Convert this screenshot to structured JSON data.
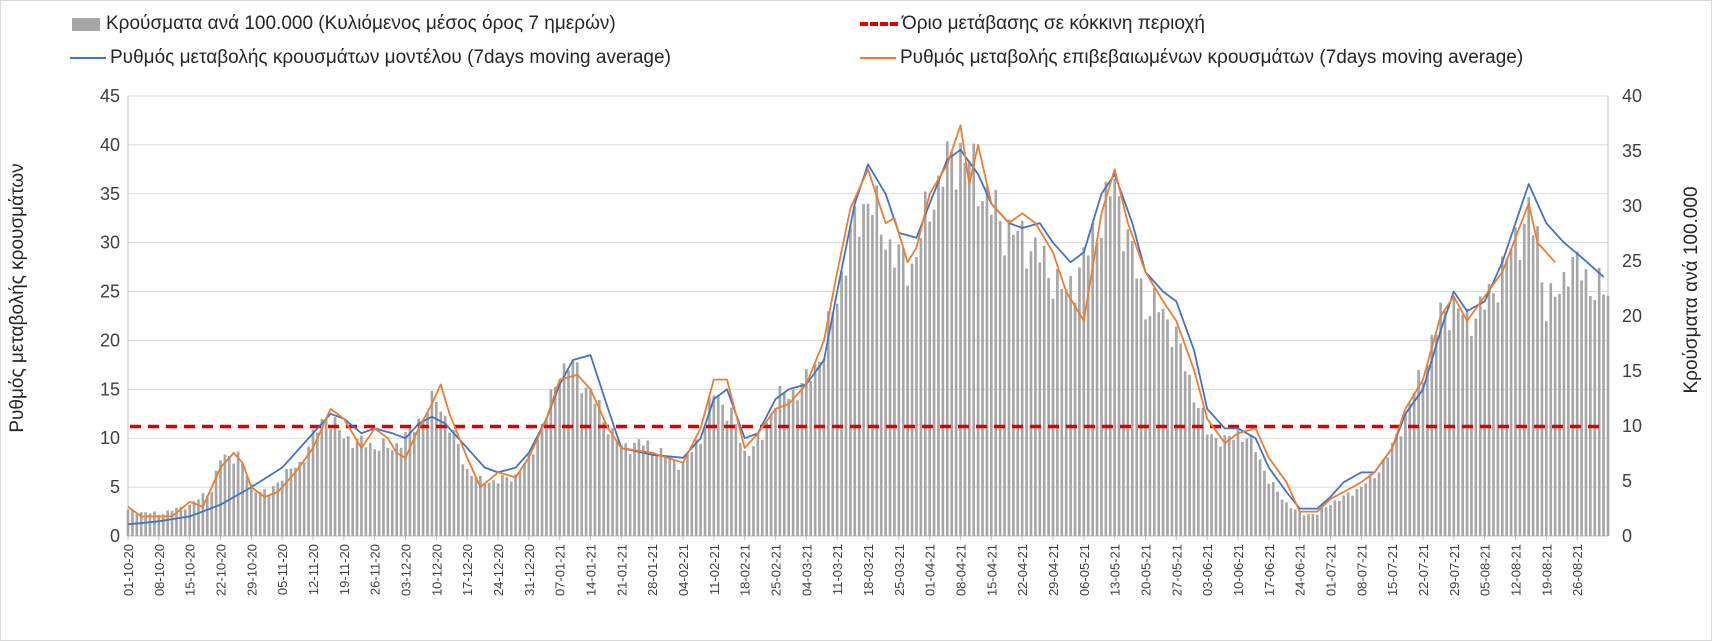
{
  "chart_data": {
    "type": "bar+line",
    "legend": {
      "bars": "Κρούσματα ανά 100.000 (Κυλιόμενος μέσος όρος 7 ημερών)",
      "threshold": "Όριο μετάβασης σε κόκκινη περιοχή",
      "model": "Ρυθμός μεταβολής κρουσμάτων μοντέλου (7days moving average)",
      "confirmed": "Ρυθμός μεταβολής επιβεβαιωμένων κρουσμάτων (7days moving average)"
    },
    "ylabel_left": "Ρυθμός μεταβολής κρουσμάτων",
    "ylabel_right": "Κρούσματα ανά 100.000",
    "y_left": {
      "min": 0,
      "max": 45,
      "ticks": [
        0,
        5,
        10,
        15,
        20,
        25,
        30,
        35,
        40,
        45
      ]
    },
    "y_right": {
      "min": 0,
      "max": 40,
      "ticks": [
        0,
        5,
        10,
        15,
        20,
        25,
        30,
        35,
        40
      ]
    },
    "x_start": "2020-10-01",
    "x_end": "2021-09-02",
    "x_ticks": [
      "01-10-20",
      "08-10-20",
      "15-10-20",
      "22-10-20",
      "29-10-20",
      "05-11-20",
      "12-11-20",
      "19-11-20",
      "26-11-20",
      "03-12-20",
      "10-12-20",
      "17-12-20",
      "24-12-20",
      "31-12-20",
      "07-01-21",
      "14-01-21",
      "21-01-21",
      "28-01-21",
      "04-02-21",
      "11-02-21",
      "18-02-21",
      "25-02-21",
      "04-03-21",
      "11-03-21",
      "18-03-21",
      "25-03-21",
      "01-04-21",
      "08-04-21",
      "15-04-21",
      "22-04-21",
      "29-04-21",
      "06-05-21",
      "13-05-21",
      "20-05-21",
      "27-05-21",
      "03-06-21",
      "10-06-21",
      "17-06-21",
      "24-06-21",
      "01-07-21",
      "08-07-21",
      "15-07-21",
      "22-07-21",
      "29-07-21",
      "05-08-21",
      "12-08-21",
      "19-08-21",
      "26-08-21"
    ],
    "threshold_left_axis": 11.2,
    "threshold_right_axis": 10,
    "grid": "horizontal",
    "legend_placement": "top",
    "colors": {
      "bars": "#a6a6a6",
      "model": "#4472c4",
      "confirmed": "#ed7d31",
      "threshold": "#e00000",
      "grid": "#d9d9d9"
    },
    "series_bars_right_axis": [
      [
        "2020-10-01",
        2.3
      ],
      [
        "2020-10-08",
        2.0
      ],
      [
        "2020-10-15",
        2.8
      ],
      [
        "2020-10-20",
        4.2
      ],
      [
        "2020-10-22",
        7.0
      ],
      [
        "2020-10-26",
        7.4
      ],
      [
        "2020-10-29",
        4.5
      ],
      [
        "2020-11-02",
        3.8
      ],
      [
        "2020-11-05",
        5.5
      ],
      [
        "2020-11-09",
        6.5
      ],
      [
        "2020-11-12",
        9.0
      ],
      [
        "2020-11-15",
        11.0
      ],
      [
        "2020-11-19",
        9.0
      ],
      [
        "2020-11-23",
        8.5
      ],
      [
        "2020-11-26",
        8.2
      ],
      [
        "2020-11-30",
        8.0
      ],
      [
        "2020-12-03",
        9.0
      ],
      [
        "2020-12-07",
        11.0
      ],
      [
        "2020-12-10",
        12.5
      ],
      [
        "2020-12-13",
        10.0
      ],
      [
        "2020-12-17",
        6.0
      ],
      [
        "2020-12-20",
        5.0
      ],
      [
        "2020-12-24",
        5.0
      ],
      [
        "2020-12-28",
        5.5
      ],
      [
        "2020-12-31",
        7.0
      ],
      [
        "2021-01-04",
        11.0
      ],
      [
        "2021-01-07",
        15.0
      ],
      [
        "2021-01-10",
        15.5
      ],
      [
        "2021-01-14",
        13.0
      ],
      [
        "2021-01-18",
        10.0
      ],
      [
        "2021-01-21",
        8.0
      ],
      [
        "2021-01-25",
        8.5
      ],
      [
        "2021-01-28",
        8.0
      ],
      [
        "2021-02-01",
        7.0
      ],
      [
        "2021-02-04",
        6.5
      ],
      [
        "2021-02-08",
        9.0
      ],
      [
        "2021-02-11",
        13.0
      ],
      [
        "2021-02-15",
        11.0
      ],
      [
        "2021-02-18",
        7.5
      ],
      [
        "2021-02-22",
        9.0
      ],
      [
        "2021-02-25",
        12.5
      ],
      [
        "2021-03-01",
        13.0
      ],
      [
        "2021-03-04",
        14.0
      ],
      [
        "2021-03-08",
        17.0
      ],
      [
        "2021-03-11",
        22.0
      ],
      [
        "2021-03-14",
        27.0
      ],
      [
        "2021-03-18",
        31.0
      ],
      [
        "2021-03-21",
        28.0
      ],
      [
        "2021-03-25",
        25.0
      ],
      [
        "2021-03-28",
        24.5
      ],
      [
        "2021-04-01",
        30.0
      ],
      [
        "2021-04-04",
        33.0
      ],
      [
        "2021-04-08",
        35.0
      ],
      [
        "2021-04-11",
        33.0
      ],
      [
        "2021-04-15",
        30.0
      ],
      [
        "2021-04-18",
        28.0
      ],
      [
        "2021-04-22",
        27.0
      ],
      [
        "2021-04-25",
        26.0
      ],
      [
        "2021-04-29",
        23.5
      ],
      [
        "2021-05-02",
        22.0
      ],
      [
        "2021-05-06",
        25.0
      ],
      [
        "2021-05-09",
        28.0
      ],
      [
        "2021-05-13",
        32.0
      ],
      [
        "2021-05-16",
        27.0
      ],
      [
        "2021-05-20",
        21.0
      ],
      [
        "2021-05-24",
        20.5
      ],
      [
        "2021-05-27",
        18.0
      ],
      [
        "2021-05-31",
        13.0
      ],
      [
        "2021-06-03",
        9.5
      ],
      [
        "2021-06-07",
        8.5
      ],
      [
        "2021-06-10",
        9.5
      ],
      [
        "2021-06-14",
        8.0
      ],
      [
        "2021-06-17",
        5.0
      ],
      [
        "2021-06-21",
        3.0
      ],
      [
        "2021-06-24",
        2.0
      ],
      [
        "2021-06-28",
        2.0
      ],
      [
        "2021-07-01",
        3.0
      ],
      [
        "2021-07-04",
        3.5
      ],
      [
        "2021-07-08",
        4.5
      ],
      [
        "2021-07-11",
        5.5
      ],
      [
        "2021-07-15",
        8.0
      ],
      [
        "2021-07-18",
        11.0
      ],
      [
        "2021-07-22",
        15.0
      ],
      [
        "2021-07-26",
        20.0
      ],
      [
        "2021-07-29",
        21.0
      ],
      [
        "2021-08-01",
        19.5
      ],
      [
        "2021-08-05",
        21.0
      ],
      [
        "2021-08-09",
        24.0
      ],
      [
        "2021-08-12",
        27.0
      ],
      [
        "2021-08-15",
        29.0
      ],
      [
        "2021-08-17",
        27.0
      ],
      [
        "2021-08-19",
        21.0
      ],
      [
        "2021-08-22",
        22.0
      ],
      [
        "2021-08-24",
        25.0
      ],
      [
        "2021-08-27",
        24.0
      ],
      [
        "2021-08-30",
        22.5
      ],
      [
        "2021-09-02",
        22.0
      ]
    ],
    "series_model_left_axis": [
      [
        "2020-10-01",
        1.2
      ],
      [
        "2020-10-08",
        1.5
      ],
      [
        "2020-10-15",
        2.0
      ],
      [
        "2020-10-22",
        3.2
      ],
      [
        "2020-10-29",
        5.0
      ],
      [
        "2020-11-05",
        7.0
      ],
      [
        "2020-11-12",
        10.5
      ],
      [
        "2020-11-16",
        12.5
      ],
      [
        "2020-11-19",
        12.0
      ],
      [
        "2020-11-23",
        10.5
      ],
      [
        "2020-11-26",
        11.0
      ],
      [
        "2020-11-30",
        10.5
      ],
      [
        "2020-12-03",
        10.0
      ],
      [
        "2020-12-06",
        11.5
      ],
      [
        "2020-12-09",
        12.2
      ],
      [
        "2020-12-12",
        11.5
      ],
      [
        "2020-12-17",
        9.0
      ],
      [
        "2020-12-21",
        7.0
      ],
      [
        "2020-12-24",
        6.5
      ],
      [
        "2020-12-28",
        7.0
      ],
      [
        "2020-12-31",
        8.5
      ],
      [
        "2021-01-04",
        12.0
      ],
      [
        "2021-01-07",
        15.5
      ],
      [
        "2021-01-10",
        18.0
      ],
      [
        "2021-01-14",
        18.5
      ],
      [
        "2021-01-18",
        13.0
      ],
      [
        "2021-01-21",
        9.0
      ],
      [
        "2021-01-28",
        8.3
      ],
      [
        "2021-02-04",
        8.0
      ],
      [
        "2021-02-08",
        10.0
      ],
      [
        "2021-02-11",
        14.0
      ],
      [
        "2021-02-14",
        15.0
      ],
      [
        "2021-02-18",
        10.0
      ],
      [
        "2021-02-21",
        10.5
      ],
      [
        "2021-02-25",
        14.0
      ],
      [
        "2021-02-28",
        15.0
      ],
      [
        "2021-03-04",
        15.5
      ],
      [
        "2021-03-08",
        18.0
      ],
      [
        "2021-03-11",
        25.0
      ],
      [
        "2021-03-15",
        34.0
      ],
      [
        "2021-03-18",
        38.0
      ],
      [
        "2021-03-22",
        35.0
      ],
      [
        "2021-03-25",
        31.0
      ],
      [
        "2021-03-29",
        30.5
      ],
      [
        "2021-04-01",
        34.0
      ],
      [
        "2021-04-05",
        38.5
      ],
      [
        "2021-04-08",
        39.5
      ],
      [
        "2021-04-12",
        37.0
      ],
      [
        "2021-04-15",
        34.0
      ],
      [
        "2021-04-19",
        32.0
      ],
      [
        "2021-04-22",
        31.5
      ],
      [
        "2021-04-26",
        32.0
      ],
      [
        "2021-04-29",
        30.0
      ],
      [
        "2021-05-03",
        28.0
      ],
      [
        "2021-05-06",
        29.0
      ],
      [
        "2021-05-10",
        35.0
      ],
      [
        "2021-05-13",
        37.0
      ],
      [
        "2021-05-17",
        32.0
      ],
      [
        "2021-05-20",
        27.0
      ],
      [
        "2021-05-24",
        25.0
      ],
      [
        "2021-05-27",
        24.0
      ],
      [
        "2021-05-31",
        19.0
      ],
      [
        "2021-06-03",
        13.0
      ],
      [
        "2021-06-07",
        11.0
      ],
      [
        "2021-06-10",
        11.0
      ],
      [
        "2021-06-14",
        10.0
      ],
      [
        "2021-06-17",
        7.0
      ],
      [
        "2021-06-21",
        4.5
      ],
      [
        "2021-06-24",
        2.8
      ],
      [
        "2021-06-28",
        2.8
      ],
      [
        "2021-07-01",
        4.0
      ],
      [
        "2021-07-04",
        5.5
      ],
      [
        "2021-07-08",
        6.5
      ],
      [
        "2021-07-11",
        6.5
      ],
      [
        "2021-07-15",
        9.0
      ],
      [
        "2021-07-18",
        12.5
      ],
      [
        "2021-07-22",
        15.0
      ],
      [
        "2021-07-26",
        21.0
      ],
      [
        "2021-07-29",
        25.0
      ],
      [
        "2021-08-01",
        23.0
      ],
      [
        "2021-08-05",
        24.0
      ],
      [
        "2021-08-09",
        28.0
      ],
      [
        "2021-08-12",
        32.0
      ],
      [
        "2021-08-15",
        36.0
      ],
      [
        "2021-08-19",
        32.0
      ],
      [
        "2021-08-23",
        30.0
      ],
      [
        "2021-08-27",
        28.5
      ],
      [
        "2021-09-01",
        26.5
      ]
    ],
    "series_confirmed_left_axis": [
      [
        "2020-10-01",
        3.0
      ],
      [
        "2020-10-04",
        2.0
      ],
      [
        "2020-10-08",
        2.0
      ],
      [
        "2020-10-11",
        2.0
      ],
      [
        "2020-10-15",
        3.5
      ],
      [
        "2020-10-18",
        3.0
      ],
      [
        "2020-10-22",
        7.0
      ],
      [
        "2020-10-25",
        8.5
      ],
      [
        "2020-10-27",
        7.5
      ],
      [
        "2020-10-29",
        5.0
      ],
      [
        "2020-11-01",
        4.0
      ],
      [
        "2020-11-04",
        4.5
      ],
      [
        "2020-11-08",
        6.5
      ],
      [
        "2020-11-12",
        9.0
      ],
      [
        "2020-11-16",
        13.0
      ],
      [
        "2020-11-19",
        12.0
      ],
      [
        "2020-11-23",
        9.0
      ],
      [
        "2020-11-26",
        11.0
      ],
      [
        "2020-11-29",
        10.0
      ],
      [
        "2020-12-01",
        8.5
      ],
      [
        "2020-12-03",
        8.0
      ],
      [
        "2020-12-06",
        11.0
      ],
      [
        "2020-12-09",
        13.5
      ],
      [
        "2020-12-11",
        15.5
      ],
      [
        "2020-12-13",
        12.5
      ],
      [
        "2020-12-17",
        8.0
      ],
      [
        "2020-12-20",
        5.0
      ],
      [
        "2020-12-24",
        6.5
      ],
      [
        "2020-12-28",
        6.0
      ],
      [
        "2020-12-31",
        8.0
      ],
      [
        "2021-01-04",
        12.0
      ],
      [
        "2021-01-07",
        16.0
      ],
      [
        "2021-01-11",
        16.5
      ],
      [
        "2021-01-14",
        15.0
      ],
      [
        "2021-01-18",
        11.0
      ],
      [
        "2021-01-21",
        9.0
      ],
      [
        "2021-01-28",
        8.5
      ],
      [
        "2021-02-04",
        7.5
      ],
      [
        "2021-02-08",
        11.0
      ],
      [
        "2021-02-11",
        16.0
      ],
      [
        "2021-02-14",
        16.0
      ],
      [
        "2021-02-18",
        9.0
      ],
      [
        "2021-02-21",
        10.5
      ],
      [
        "2021-02-25",
        13.0
      ],
      [
        "2021-02-28",
        13.5
      ],
      [
        "2021-03-04",
        15.5
      ],
      [
        "2021-03-08",
        20.0
      ],
      [
        "2021-03-11",
        27.0
      ],
      [
        "2021-03-14",
        33.5
      ],
      [
        "2021-03-18",
        37.5
      ],
      [
        "2021-03-22",
        32.0
      ],
      [
        "2021-03-24",
        32.5
      ],
      [
        "2021-03-27",
        28.0
      ],
      [
        "2021-03-29",
        29.5
      ],
      [
        "2021-04-01",
        35.0
      ],
      [
        "2021-04-05",
        38.0
      ],
      [
        "2021-04-08",
        42.0
      ],
      [
        "2021-04-10",
        36.0
      ],
      [
        "2021-04-12",
        40.0
      ],
      [
        "2021-04-15",
        34.0
      ],
      [
        "2021-04-19",
        32.0
      ],
      [
        "2021-04-22",
        33.0
      ],
      [
        "2021-04-25",
        32.0
      ],
      [
        "2021-04-29",
        29.0
      ],
      [
        "2021-05-02",
        25.0
      ],
      [
        "2021-05-06",
        22.0
      ],
      [
        "2021-05-10",
        33.0
      ],
      [
        "2021-05-13",
        37.5
      ],
      [
        "2021-05-16",
        32.0
      ],
      [
        "2021-05-20",
        27.0
      ],
      [
        "2021-05-24",
        24.0
      ],
      [
        "2021-05-27",
        22.0
      ],
      [
        "2021-05-31",
        17.0
      ],
      [
        "2021-06-03",
        12.0
      ],
      [
        "2021-06-07",
        9.5
      ],
      [
        "2021-06-10",
        10.5
      ],
      [
        "2021-06-14",
        11.0
      ],
      [
        "2021-06-17",
        8.0
      ],
      [
        "2021-06-21",
        5.5
      ],
      [
        "2021-06-24",
        2.5
      ],
      [
        "2021-06-28",
        2.5
      ],
      [
        "2021-07-01",
        3.8
      ],
      [
        "2021-07-04",
        4.5
      ],
      [
        "2021-07-08",
        5.5
      ],
      [
        "2021-07-11",
        6.5
      ],
      [
        "2021-07-15",
        9.0
      ],
      [
        "2021-07-18",
        13.0
      ],
      [
        "2021-07-22",
        16.0
      ],
      [
        "2021-07-26",
        22.5
      ],
      [
        "2021-07-29",
        24.5
      ],
      [
        "2021-08-01",
        22.0
      ],
      [
        "2021-08-05",
        24.5
      ],
      [
        "2021-08-09",
        27.0
      ],
      [
        "2021-08-12",
        30.5
      ],
      [
        "2021-08-15",
        34.0
      ],
      [
        "2021-08-17",
        30.0
      ],
      [
        "2021-08-19",
        29.0
      ],
      [
        "2021-08-21",
        28.0
      ]
    ]
  }
}
